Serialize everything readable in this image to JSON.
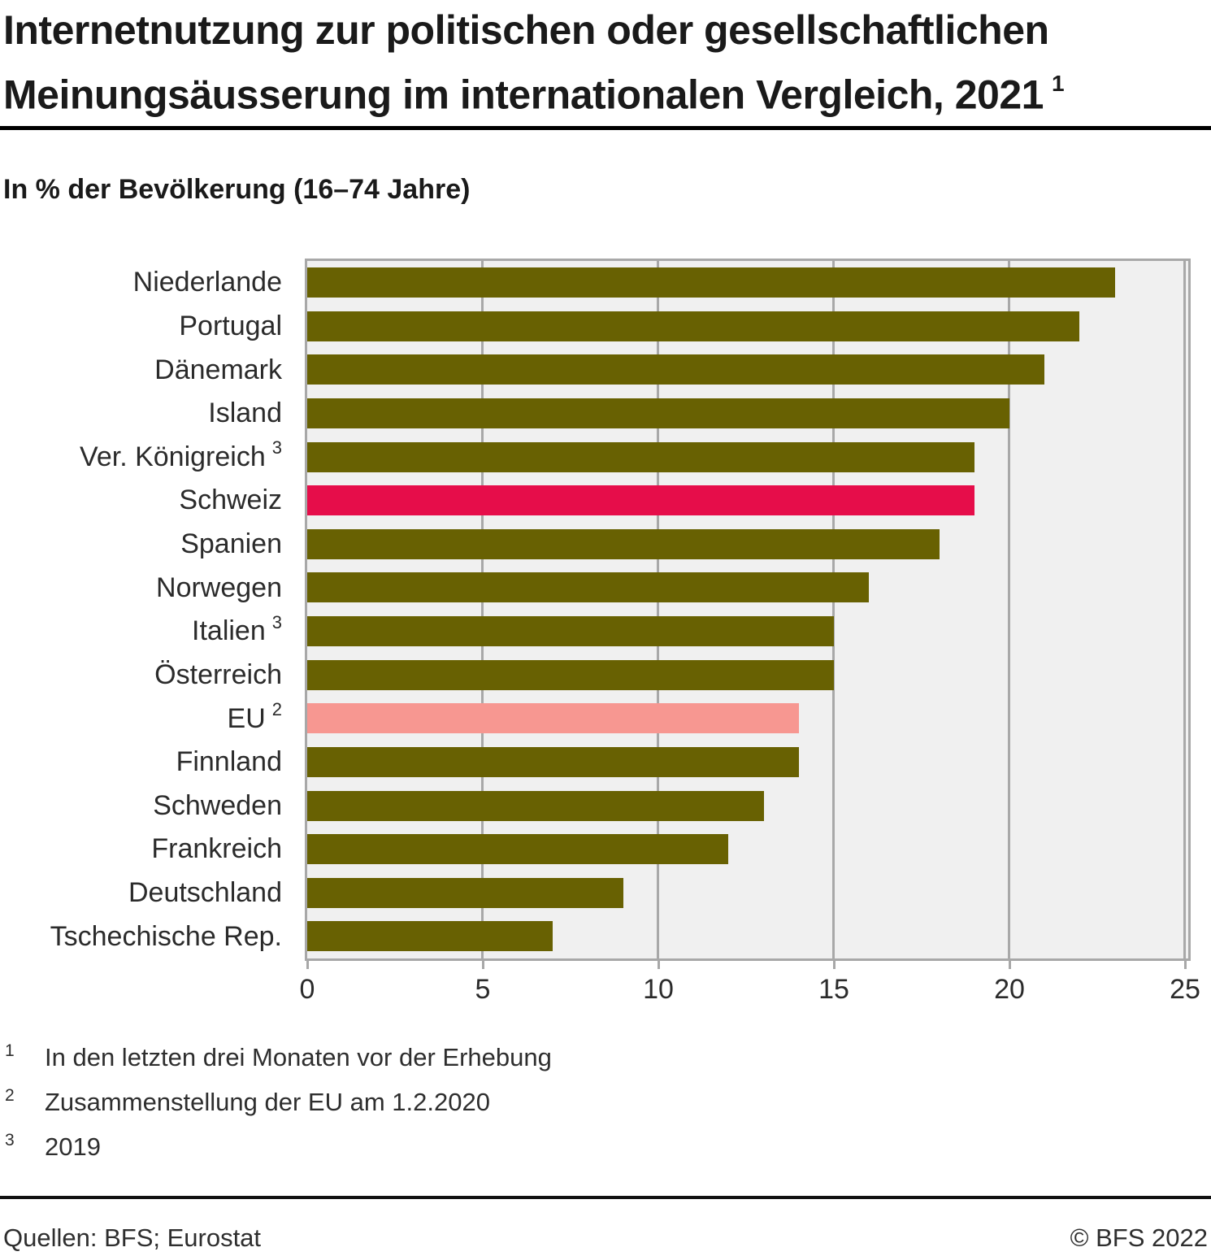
{
  "title": {
    "line1": "Internetnutzung zur politischen oder gesellschaftlichen",
    "line2": "Meinungsäusserung im internationalen Vergleich, 2021",
    "footnote_marker": "1"
  },
  "subtitle": "In % der Bevölkerung (16–74 Jahre)",
  "chart_data": {
    "type": "bar",
    "orientation": "horizontal",
    "title": "Internetnutzung zur politischen oder gesellschaftlichen Meinungsäusserung im internationalen Vergleich, 2021",
    "xlabel": "In % der Bevölkerung (16–74 Jahre)",
    "ylabel": "",
    "xlim": [
      0,
      25
    ],
    "xticks": [
      0,
      5,
      10,
      15,
      20,
      25
    ],
    "grid": true,
    "legend": "none",
    "bars": [
      {
        "label": "Niederlande",
        "footnote": "",
        "value": 23,
        "color": "olive"
      },
      {
        "label": "Portugal",
        "footnote": "",
        "value": 22,
        "color": "olive"
      },
      {
        "label": "Dänemark",
        "footnote": "",
        "value": 21,
        "color": "olive"
      },
      {
        "label": "Island",
        "footnote": "",
        "value": 20,
        "color": "olive"
      },
      {
        "label": "Ver. Königreich",
        "footnote": "3",
        "value": 19,
        "color": "olive"
      },
      {
        "label": "Schweiz",
        "footnote": "",
        "value": 19,
        "color": "red"
      },
      {
        "label": "Spanien",
        "footnote": "",
        "value": 18,
        "color": "olive"
      },
      {
        "label": "Norwegen",
        "footnote": "",
        "value": 16,
        "color": "olive"
      },
      {
        "label": "Italien",
        "footnote": "3",
        "value": 15,
        "color": "olive"
      },
      {
        "label": "Österreich",
        "footnote": "",
        "value": 15,
        "color": "olive"
      },
      {
        "label": "EU",
        "footnote": "2",
        "value": 14,
        "color": "pink"
      },
      {
        "label": "Finnland",
        "footnote": "",
        "value": 14,
        "color": "olive"
      },
      {
        "label": "Schweden",
        "footnote": "",
        "value": 13,
        "color": "olive"
      },
      {
        "label": "Frankreich",
        "footnote": "",
        "value": 12,
        "color": "olive"
      },
      {
        "label": "Deutschland",
        "footnote": "",
        "value": 9,
        "color": "olive"
      },
      {
        "label": "Tschechische Rep.",
        "footnote": "",
        "value": 7,
        "color": "olive"
      }
    ]
  },
  "colors": {
    "olive": "#686102",
    "red": "#E60D4A",
    "pink": "#F79791",
    "plot_background": "#F0F0F0",
    "grid": "#A8A8A8"
  },
  "footnotes": [
    {
      "marker": "1",
      "text": "In den letzten drei Monaten vor der Erhebung"
    },
    {
      "marker": "2",
      "text": "Zusammenstellung der EU am 1.2.2020"
    },
    {
      "marker": "3",
      "text": "2019"
    }
  ],
  "footer": {
    "source": "Quellen: BFS; Eurostat",
    "copyright": "© BFS 2022"
  }
}
